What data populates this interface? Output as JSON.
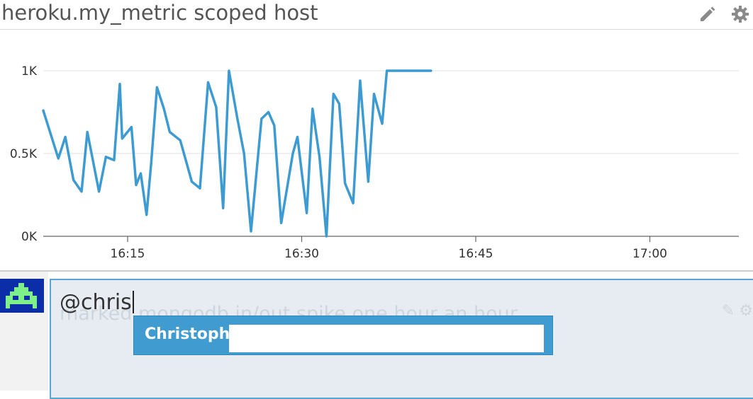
{
  "widget": {
    "title": "heroku.my_metric scoped host",
    "icons": {
      "edit": "pencil-icon",
      "settings": "gear-icon"
    }
  },
  "chart_data": {
    "type": "line",
    "x_ticks": [
      "16:15",
      "16:30",
      "16:45",
      "17:00"
    ],
    "y_ticks": [
      "0K",
      "0.5K",
      "1K"
    ],
    "ylim": [
      0,
      1000
    ],
    "grid": true,
    "color": "#3d9bd2",
    "series": [
      {
        "x_minutes": [
          0,
          1.3,
          1.9,
          2.6,
          3.3,
          3.8,
          4.8,
          5.4,
          6.1,
          6.6,
          6.8,
          7.6,
          8.0,
          8.4,
          8.9,
          9.3,
          9.8,
          10.4,
          10.9,
          11.8,
          12.8,
          13.5,
          14.2,
          14.9,
          15.5,
          16.0,
          16.7,
          17.3,
          17.9,
          18.8,
          19.4,
          19.9,
          20.5,
          21.5,
          21.9,
          22.7,
          23.2,
          23.8,
          24.4,
          25.0,
          25.5,
          26.0,
          26.7,
          27.3,
          28.0,
          28.5,
          29.2,
          29.6,
          30.2,
          30.8,
          31.5,
          32.3,
          33.4
        ],
        "values": [
          760,
          470,
          600,
          340,
          270,
          630,
          270,
          480,
          460,
          920,
          590,
          660,
          310,
          380,
          130,
          440,
          900,
          770,
          630,
          580,
          330,
          290,
          930,
          780,
          170,
          1000,
          720,
          500,
          30,
          710,
          750,
          670,
          80,
          500,
          600,
          140,
          770,
          480,
          0,
          860,
          800,
          320,
          200,
          940,
          330,
          860,
          680,
          1000,
          1000,
          1000,
          1000,
          1000,
          1000
        ]
      }
    ]
  },
  "comment": {
    "input_value": "@chris",
    "ghost_text": "marked mongodb in/out spike one hour an hour",
    "suggestion": "Christoph"
  }
}
